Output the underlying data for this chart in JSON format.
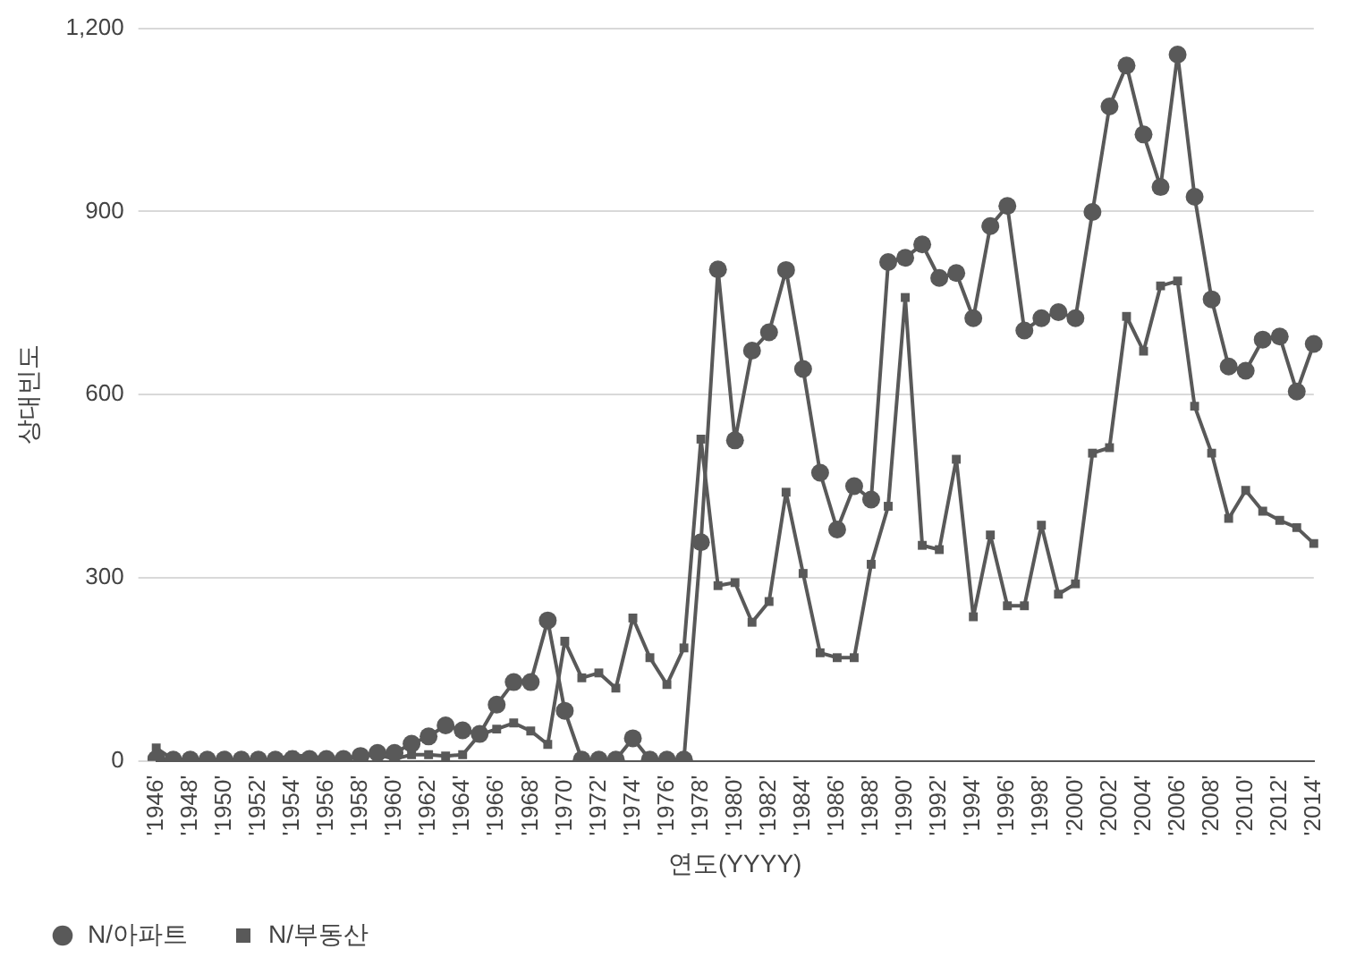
{
  "chart_data": {
    "type": "line",
    "xlabel": "연도(YYYY)",
    "ylabel": "상대빈도",
    "categories": [
      "'1946'",
      null,
      "'1948'",
      null,
      "'1950'",
      null,
      "'1952'",
      null,
      "'1954'",
      null,
      "'1956'",
      null,
      "'1958'",
      null,
      "'1960'",
      null,
      "'1962'",
      null,
      "'1964'",
      null,
      "'1966'",
      null,
      "'1968'",
      null,
      "'1970'",
      null,
      "'1972'",
      null,
      "'1974'",
      null,
      "'1976'",
      null,
      "'1978'",
      null,
      "'1980'",
      null,
      "'1982'",
      null,
      "'1984'",
      null,
      "'1986'",
      null,
      "'1988'",
      null,
      "'1990'",
      null,
      "'1992'",
      null,
      "'1994'",
      null,
      "'1996'",
      null,
      "'1998'",
      null,
      "'2000'",
      null,
      "'2002'",
      null,
      "'2004'",
      null,
      "'2006'",
      null,
      "'2008'",
      null,
      "'2010'",
      null,
      "'2012'",
      null,
      "'2014'"
    ],
    "series": [
      {
        "name": "N/아파트",
        "color": "#595959",
        "marker": "circle",
        "values": [
          3,
          2,
          2,
          2,
          2,
          2,
          2,
          2,
          3,
          3,
          3,
          3,
          8,
          13,
          13,
          28,
          40,
          58,
          50,
          44,
          92,
          129,
          129,
          230,
          82,
          2,
          2,
          2,
          37,
          2,
          2,
          2,
          358,
          805,
          525,
          672,
          702,
          804,
          642,
          472,
          379,
          450,
          428,
          817,
          824,
          846,
          791,
          799,
          725,
          876,
          909,
          705,
          725,
          735,
          725,
          899,
          1072,
          1139,
          1026,
          940,
          1157,
          924,
          756,
          646,
          639,
          690,
          695,
          605,
          683
        ]
      },
      {
        "name": "N/부동산",
        "color": "#595959",
        "marker": "square",
        "values": [
          21,
          2,
          2,
          2,
          2,
          2,
          2,
          2,
          9,
          8,
          3,
          3,
          8,
          10,
          3,
          10,
          10,
          8,
          10,
          43,
          52,
          62,
          49,
          27,
          196,
          136,
          144,
          119,
          234,
          169,
          125,
          185,
          527,
          287,
          292,
          227,
          261,
          440,
          307,
          177,
          169,
          169,
          322,
          417,
          759,
          353,
          346,
          494,
          236,
          370,
          254,
          254,
          386,
          273,
          290,
          504,
          513,
          728,
          671,
          778,
          786,
          581,
          504,
          397,
          443,
          409,
          394,
          382,
          356
        ]
      }
    ],
    "ylim": [
      0,
      1200
    ],
    "yticks": [
      0,
      300,
      600,
      900,
      {
        "value": 1200,
        "label": "1,200"
      }
    ],
    "grid": "y",
    "legend": "bottom left",
    "line_style": "solid"
  }
}
